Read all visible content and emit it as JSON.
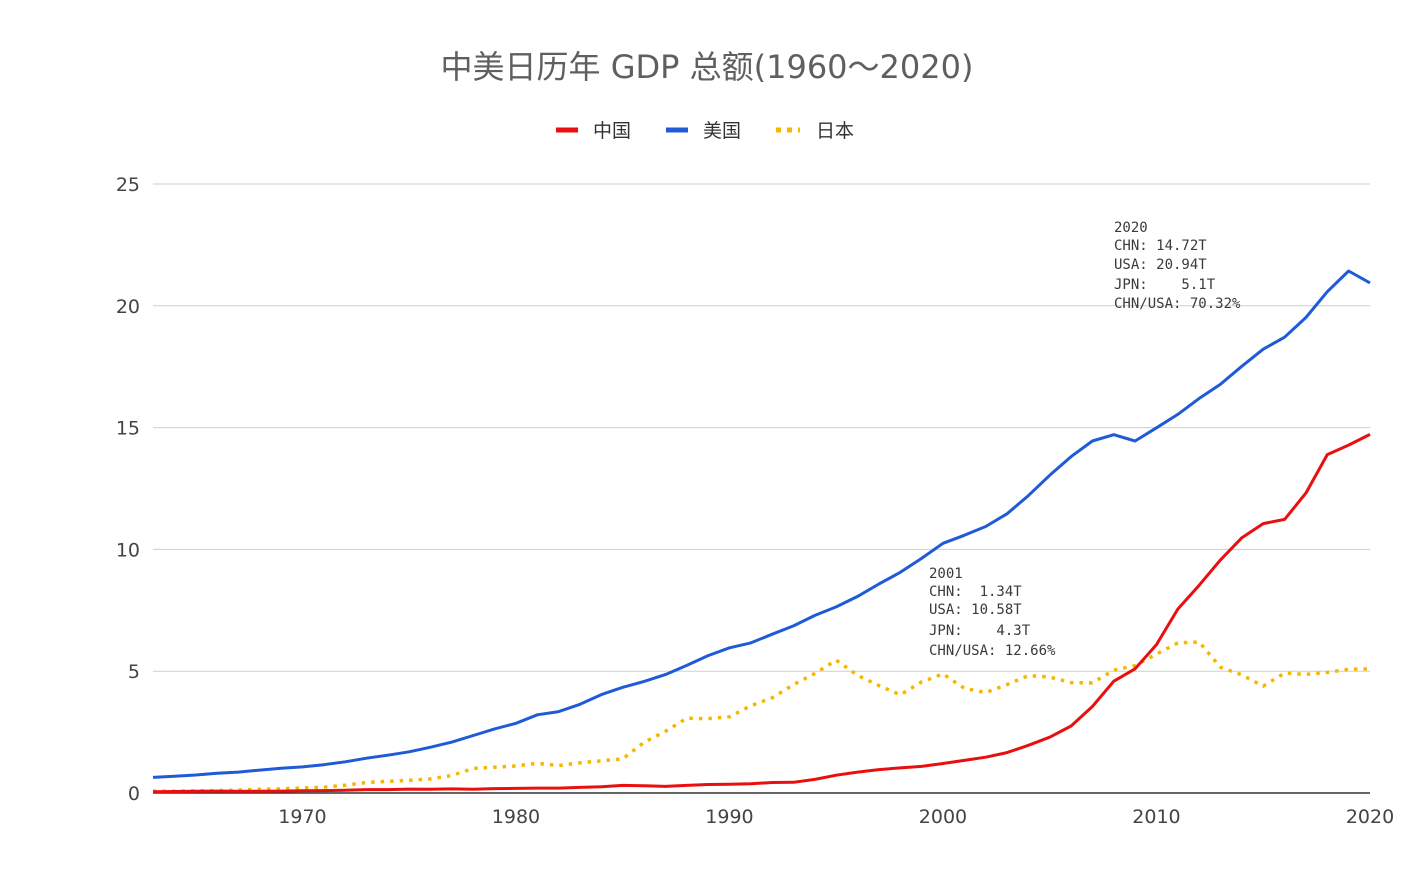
{
  "chart_data": {
    "type": "line",
    "title": "中美日历年 GDP 总额(1960～2020)",
    "xlabel": "",
    "ylabel": "",
    "xlim": [
      1963,
      2020
    ],
    "ylim": [
      0,
      25
    ],
    "x_ticks": [
      "1970",
      "1980",
      "1990",
      "2000",
      "2010",
      "2020"
    ],
    "y_ticks": [
      "0",
      "5",
      "10",
      "15",
      "20",
      "25"
    ],
    "grid": true,
    "legend_position": "top",
    "x": [
      1963,
      1964,
      1965,
      1966,
      1967,
      1968,
      1969,
      1970,
      1971,
      1972,
      1973,
      1974,
      1975,
      1976,
      1977,
      1978,
      1979,
      1980,
      1981,
      1982,
      1983,
      1984,
      1985,
      1986,
      1987,
      1988,
      1989,
      1990,
      1991,
      1992,
      1993,
      1994,
      1995,
      1996,
      1997,
      1998,
      1999,
      2000,
      2001,
      2002,
      2003,
      2004,
      2005,
      2006,
      2007,
      2008,
      2009,
      2010,
      2011,
      2012,
      2013,
      2014,
      2015,
      2016,
      2017,
      2018,
      2019,
      2020
    ],
    "series": [
      {
        "name": "中国",
        "color": "#ea0f0f",
        "style": "solid",
        "values": [
          0.05,
          0.06,
          0.07,
          0.08,
          0.07,
          0.07,
          0.08,
          0.09,
          0.1,
          0.11,
          0.14,
          0.14,
          0.16,
          0.15,
          0.17,
          0.15,
          0.18,
          0.19,
          0.2,
          0.2,
          0.23,
          0.26,
          0.31,
          0.3,
          0.27,
          0.31,
          0.35,
          0.36,
          0.38,
          0.43,
          0.44,
          0.56,
          0.73,
          0.86,
          0.96,
          1.03,
          1.09,
          1.21,
          1.34,
          1.47,
          1.66,
          1.96,
          2.29,
          2.75,
          3.55,
          4.59,
          5.1,
          6.09,
          7.55,
          8.53,
          9.57,
          10.48,
          11.06,
          11.23,
          12.31,
          13.89,
          14.28,
          14.72
        ]
      },
      {
        "name": "美国",
        "color": "#1f5bd6",
        "style": "solid",
        "values": [
          0.64,
          0.69,
          0.74,
          0.81,
          0.86,
          0.94,
          1.02,
          1.07,
          1.16,
          1.28,
          1.43,
          1.55,
          1.69,
          1.88,
          2.09,
          2.36,
          2.63,
          2.86,
          3.21,
          3.34,
          3.64,
          4.04,
          4.34,
          4.58,
          4.86,
          5.24,
          5.64,
          5.96,
          6.16,
          6.52,
          6.86,
          7.29,
          7.64,
          8.07,
          8.58,
          9.06,
          9.63,
          10.25,
          10.58,
          10.94,
          11.46,
          12.21,
          13.04,
          13.81,
          14.45,
          14.71,
          14.45,
          14.99,
          15.54,
          16.2,
          16.78,
          17.52,
          18.22,
          18.71,
          19.52,
          20.58,
          21.43,
          20.94
        ]
      },
      {
        "name": "日本",
        "color": "#f5b800",
        "style": "dotted",
        "values": [
          0.08,
          0.08,
          0.09,
          0.1,
          0.12,
          0.15,
          0.17,
          0.21,
          0.24,
          0.32,
          0.43,
          0.48,
          0.52,
          0.58,
          0.72,
          1.01,
          1.06,
          1.11,
          1.22,
          1.13,
          1.24,
          1.32,
          1.4,
          2.08,
          2.53,
          3.07,
          3.05,
          3.13,
          3.58,
          3.91,
          4.45,
          4.91,
          5.45,
          4.83,
          4.41,
          4.03,
          4.56,
          4.89,
          4.3,
          4.12,
          4.45,
          4.82,
          4.76,
          4.53,
          4.52,
          5.04,
          5.23,
          5.7,
          6.16,
          6.2,
          5.16,
          4.85,
          4.39,
          4.92,
          4.87,
          4.95,
          5.08,
          5.1
        ]
      }
    ],
    "annotations": [
      {
        "lines": [
          "2020",
          "CHN: 14.72T",
          "USA: 20.94T",
          "JPN:    5.1T",
          "CHN/USA: 70.32%"
        ]
      },
      {
        "lines": [
          "2001",
          "CHN:  1.34T",
          "USA: 10.58T",
          "JPN:    4.3T",
          "CHN/USA: 12.66%"
        ]
      }
    ]
  }
}
